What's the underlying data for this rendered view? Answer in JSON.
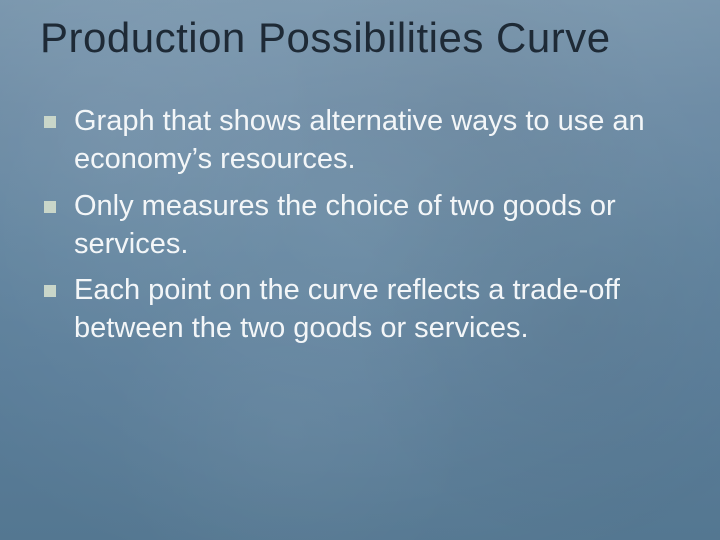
{
  "slide": {
    "title": "Production Possibilities Curve",
    "title_color": "#1e2a36",
    "title_fontsize": 42,
    "background_colors": [
      "#7996ad",
      "#6b8aa4",
      "#60839e",
      "#5a7d99",
      "#547791"
    ],
    "bullet_square_color": "#c9d6c9",
    "body_text_color": "#f3f6f8",
    "body_fontsize": 29,
    "bullets": [
      "Graph that shows alternative ways to use an economy’s resources.",
      "Only measures the choice of two goods or services.",
      "Each point on the curve reflects a trade-off between the two goods or services."
    ]
  }
}
